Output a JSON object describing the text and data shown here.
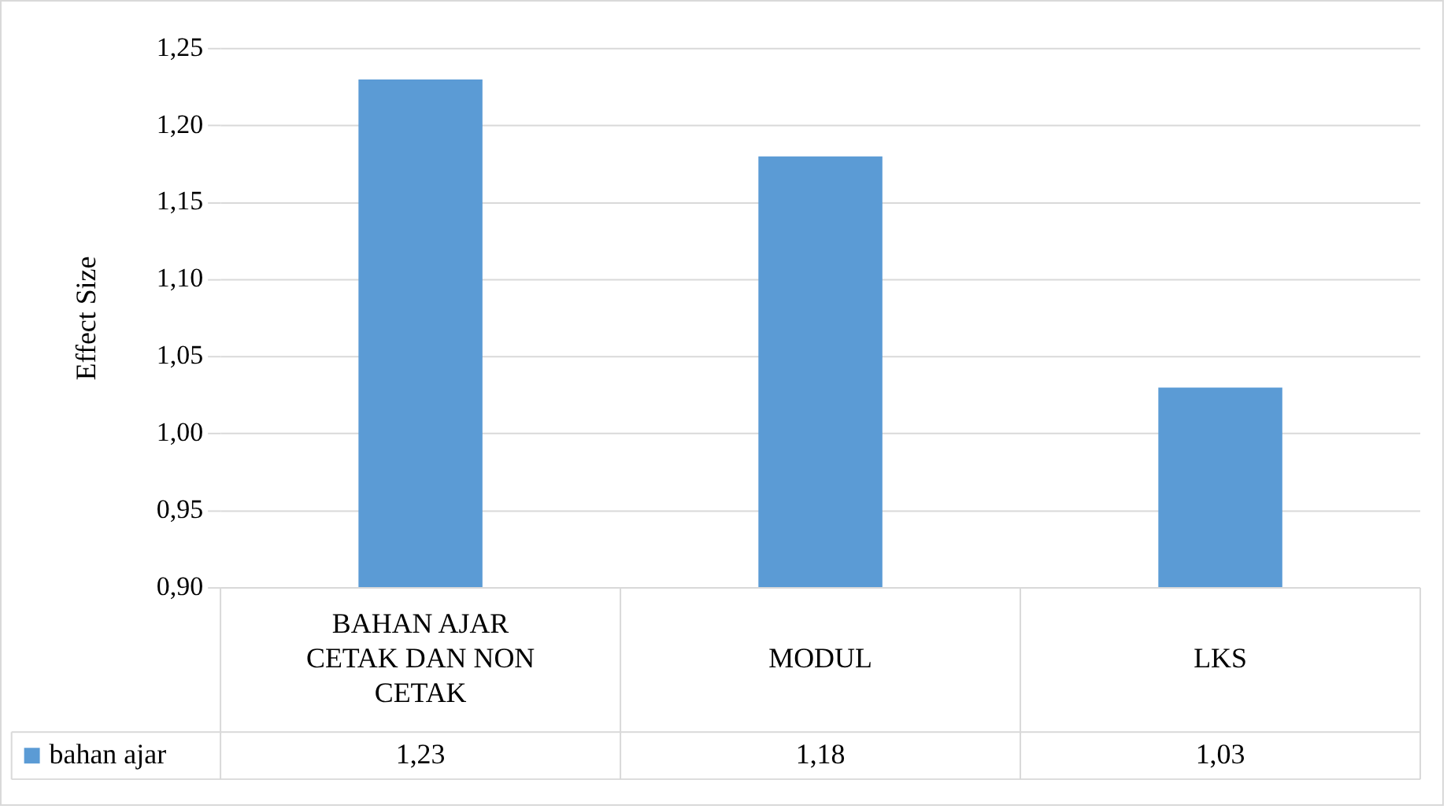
{
  "chart_data": {
    "type": "bar",
    "ylabel": "Effect Size",
    "categories": [
      "BAHAN AJAR CETAK DAN NON CETAK",
      "MODUL",
      "LKS"
    ],
    "series": [
      {
        "name": "bahan ajar",
        "color": "#5b9bd5",
        "values": [
          1.23,
          1.18,
          1.03
        ],
        "value_labels": [
          "1,23",
          "1,18",
          "1,03"
        ]
      }
    ],
    "ylim": [
      0.9,
      1.25
    ],
    "yticks": [
      {
        "value": 0.9,
        "label": "0,90"
      },
      {
        "value": 0.95,
        "label": "0,95"
      },
      {
        "value": 1.0,
        "label": "1,00"
      },
      {
        "value": 1.05,
        "label": "1,05"
      },
      {
        "value": 1.1,
        "label": "1,10"
      },
      {
        "value": 1.15,
        "label": "1,15"
      },
      {
        "value": 1.2,
        "label": "1,20"
      },
      {
        "value": 1.25,
        "label": "1,25"
      }
    ],
    "grid": "y",
    "legend": "bottom"
  }
}
